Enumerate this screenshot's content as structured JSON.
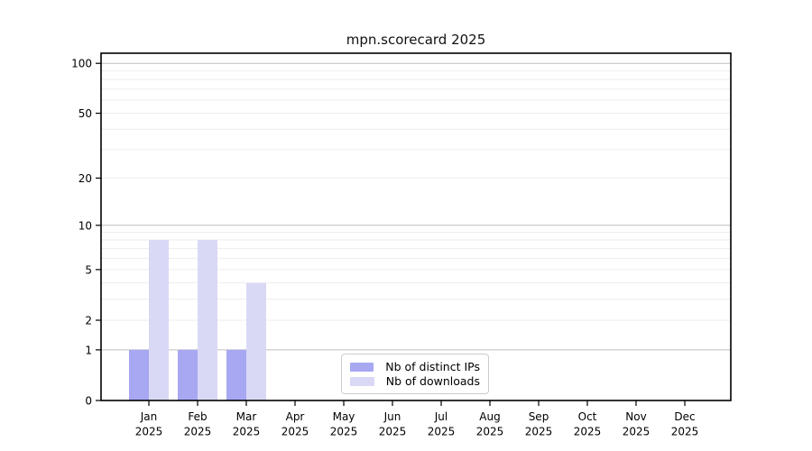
{
  "chart_data": {
    "type": "bar",
    "title": "mpn.scorecard 2025",
    "categories": [
      "Jan",
      "Feb",
      "Mar",
      "Apr",
      "May",
      "Jun",
      "Jul",
      "Aug",
      "Sep",
      "Oct",
      "Nov",
      "Dec"
    ],
    "year_label": "2025",
    "series": [
      {
        "name": "Nb of distinct IPs",
        "color": "#a7a7f2",
        "values": [
          1,
          1,
          1,
          0,
          0,
          0,
          0,
          0,
          0,
          0,
          0,
          0
        ]
      },
      {
        "name": "Nb of downloads",
        "color": "#d9d9f6",
        "values": [
          8,
          8,
          4,
          0,
          0,
          0,
          0,
          0,
          0,
          0,
          0,
          0
        ]
      }
    ],
    "yscale": "log1p",
    "ylim": [
      0,
      115
    ],
    "yticks": [
      0,
      1,
      2,
      5,
      10,
      20,
      50,
      100
    ],
    "major_gridlines": [
      1,
      10,
      100
    ],
    "minor_gridlines": [
      2,
      3,
      4,
      5,
      6,
      7,
      8,
      9,
      20,
      30,
      40,
      50,
      60,
      70,
      80,
      90
    ],
    "grid": true,
    "legend_position": "inside-bottom-center",
    "colors": {
      "major_grid": "#bfbfbf",
      "minor_grid": "#ededed",
      "axis": "#000000",
      "background": "#ffffff"
    }
  }
}
